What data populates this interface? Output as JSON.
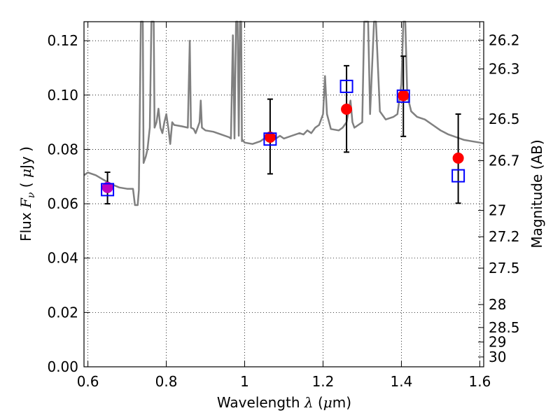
{
  "chart_data": {
    "type": "scatter",
    "title": "",
    "xlabel": {
      "pre": "Wavelength ",
      "sym": "λ",
      "post": " (",
      "mu": "μ",
      "unit": "m)"
    },
    "ylabel": {
      "pre": "Flux ",
      "sym": "F",
      "sub": "ν",
      "mid": " ( ",
      "mu": "μ",
      "unit": "Jy )"
    },
    "y2label": "Magnitude (AB)",
    "xlim": [
      0.59,
      1.61
    ],
    "ylim": [
      0.0,
      0.127
    ],
    "grid": true,
    "x_ticks": [
      0.6,
      0.8,
      1.0,
      1.2,
      1.4,
      1.6
    ],
    "x_tick_labels": [
      "0.6",
      "0.8",
      "1",
      "1.2",
      "1.4",
      "1.6"
    ],
    "y_ticks": [
      0.0,
      0.02,
      0.04,
      0.06,
      0.08,
      0.1,
      0.12
    ],
    "y_tick_labels": [
      "0.00",
      "0.02",
      "0.04",
      "0.06",
      "0.08",
      "0.10",
      "0.12"
    ],
    "y2_ticks": [
      {
        "label": "26.2",
        "mag": 26.2
      },
      {
        "label": "26.3",
        "mag": 26.3
      },
      {
        "label": "26.5",
        "mag": 26.5
      },
      {
        "label": "26.7",
        "mag": 26.7
      },
      {
        "label": "27",
        "mag": 27.0
      },
      {
        "label": "27.2",
        "mag": 27.2
      },
      {
        "label": "27.5",
        "mag": 27.5
      },
      {
        "label": "28",
        "mag": 28.0
      },
      {
        "label": "28.5",
        "mag": 28.5
      },
      {
        "label": "29",
        "mag": 29.0
      },
      {
        "label": "30",
        "mag": 30.0
      }
    ],
    "model_spectrum": {
      "color": "#808080",
      "points": [
        [
          0.59,
          0.0705
        ],
        [
          0.6,
          0.0715
        ],
        [
          0.62,
          0.0705
        ],
        [
          0.64,
          0.0688
        ],
        [
          0.66,
          0.0672
        ],
        [
          0.68,
          0.066
        ],
        [
          0.7,
          0.0655
        ],
        [
          0.715,
          0.0655
        ],
        [
          0.72,
          0.0595
        ],
        [
          0.727,
          0.0595
        ],
        [
          0.73,
          0.065
        ],
        [
          0.735,
          0.13
        ],
        [
          0.74,
          0.13
        ],
        [
          0.742,
          0.075
        ],
        [
          0.748,
          0.0775
        ],
        [
          0.752,
          0.08
        ],
        [
          0.758,
          0.088
        ],
        [
          0.762,
          0.13
        ],
        [
          0.768,
          0.13
        ],
        [
          0.77,
          0.088
        ],
        [
          0.775,
          0.09
        ],
        [
          0.78,
          0.095
        ],
        [
          0.785,
          0.088
        ],
        [
          0.79,
          0.086
        ],
        [
          0.795,
          0.09
        ],
        [
          0.8,
          0.093
        ],
        [
          0.805,
          0.088
        ],
        [
          0.81,
          0.082
        ],
        [
          0.815,
          0.09
        ],
        [
          0.82,
          0.089
        ],
        [
          0.84,
          0.0885
        ],
        [
          0.855,
          0.088
        ],
        [
          0.86,
          0.12
        ],
        [
          0.863,
          0.088
        ],
        [
          0.87,
          0.0875
        ],
        [
          0.875,
          0.086
        ],
        [
          0.88,
          0.088
        ],
        [
          0.885,
          0.09
        ],
        [
          0.888,
          0.098
        ],
        [
          0.891,
          0.088
        ],
        [
          0.9,
          0.087
        ],
        [
          0.92,
          0.0865
        ],
        [
          0.94,
          0.0855
        ],
        [
          0.96,
          0.0845
        ],
        [
          0.965,
          0.084
        ],
        [
          0.97,
          0.122
        ],
        [
          0.974,
          0.084
        ],
        [
          0.978,
          0.13
        ],
        [
          0.982,
          0.13
        ],
        [
          0.985,
          0.085
        ],
        [
          0.988,
          0.13
        ],
        [
          0.991,
          0.13
        ],
        [
          0.993,
          0.083
        ],
        [
          0.995,
          0.0835
        ],
        [
          1.0,
          0.0825
        ],
        [
          1.02,
          0.082
        ],
        [
          1.04,
          0.083
        ],
        [
          1.05,
          0.084
        ],
        [
          1.06,
          0.0845
        ],
        [
          1.07,
          0.0835
        ],
        [
          1.08,
          0.084
        ],
        [
          1.09,
          0.085
        ],
        [
          1.1,
          0.084
        ],
        [
          1.12,
          0.085
        ],
        [
          1.14,
          0.086
        ],
        [
          1.15,
          0.0855
        ],
        [
          1.16,
          0.087
        ],
        [
          1.17,
          0.086
        ],
        [
          1.18,
          0.088
        ],
        [
          1.19,
          0.089
        ],
        [
          1.2,
          0.093
        ],
        [
          1.205,
          0.107
        ],
        [
          1.21,
          0.093
        ],
        [
          1.22,
          0.0875
        ],
        [
          1.24,
          0.087
        ],
        [
          1.25,
          0.088
        ],
        [
          1.26,
          0.09
        ],
        [
          1.27,
          0.098
        ],
        [
          1.275,
          0.09
        ],
        [
          1.28,
          0.088
        ],
        [
          1.3,
          0.09
        ],
        [
          1.305,
          0.13
        ],
        [
          1.31,
          0.13
        ],
        [
          1.315,
          0.13
        ],
        [
          1.32,
          0.093
        ],
        [
          1.33,
          0.13
        ],
        [
          1.335,
          0.13
        ],
        [
          1.345,
          0.094
        ],
        [
          1.36,
          0.091
        ],
        [
          1.38,
          0.092
        ],
        [
          1.39,
          0.093
        ],
        [
          1.4,
          0.104
        ],
        [
          1.405,
          0.13
        ],
        [
          1.41,
          0.13
        ],
        [
          1.415,
          0.1
        ],
        [
          1.425,
          0.094
        ],
        [
          1.44,
          0.092
        ],
        [
          1.46,
          0.091
        ],
        [
          1.48,
          0.089
        ],
        [
          1.5,
          0.087
        ],
        [
          1.52,
          0.0855
        ],
        [
          1.54,
          0.0845
        ],
        [
          1.56,
          0.0835
        ],
        [
          1.58,
          0.083
        ],
        [
          1.6,
          0.0825
        ],
        [
          1.61,
          0.0822
        ]
      ]
    },
    "series": [
      {
        "marker": "circle",
        "color": "#ff0000",
        "x": [
          0.65,
          1.065,
          1.26,
          1.405,
          1.545
        ],
        "y": [
          0.066,
          0.0845,
          0.0948,
          0.0998,
          0.0768
        ],
        "yerr_low": [
          0.006,
          0.0135,
          0.0158,
          0.015,
          0.0166
        ],
        "yerr_high": [
          0.0056,
          0.014,
          0.016,
          0.0145,
          0.0162
        ],
        "first_point_color": "#bf00bf"
      },
      {
        "marker": "square",
        "color": "#0000ff",
        "x": [
          0.65,
          1.065,
          1.26,
          1.405,
          1.545
        ],
        "y": [
          0.0652,
          0.0838,
          0.1032,
          0.0996,
          0.0703
        ]
      }
    ]
  }
}
